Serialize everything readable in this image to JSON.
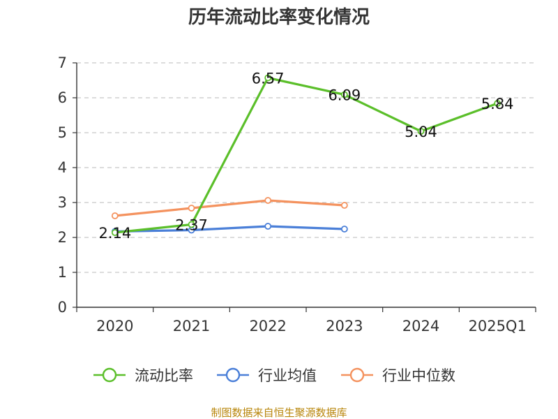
{
  "chart_data": {
    "type": "line",
    "title": "历年流动比率变化情况",
    "categories": [
      "2020",
      "2021",
      "2022",
      "2023",
      "2024",
      "2025Q1"
    ],
    "ylim": [
      0,
      7
    ],
    "yticks": [
      "0",
      "1",
      "2",
      "3",
      "4",
      "5",
      "6",
      "7"
    ],
    "grid": true,
    "legend_position": "bottom",
    "series": [
      {
        "name": "流动比率",
        "color": "#5bbf2a",
        "values": [
          2.14,
          2.37,
          6.57,
          6.09,
          5.04,
          5.84
        ],
        "labels": [
          "2.14",
          "2.37",
          "6.57",
          "6.09",
          "5.04",
          "5.84"
        ],
        "show_labels": true
      },
      {
        "name": "行业均值",
        "color": "#4a7fd8",
        "values": [
          2.17,
          2.21,
          2.32,
          2.24,
          null,
          null
        ],
        "show_labels": false
      },
      {
        "name": "行业中位数",
        "color": "#f4925e",
        "values": [
          2.62,
          2.84,
          3.06,
          2.92,
          null,
          null
        ],
        "show_labels": false
      }
    ],
    "source": "制图数据来自恒生聚源数据库"
  }
}
